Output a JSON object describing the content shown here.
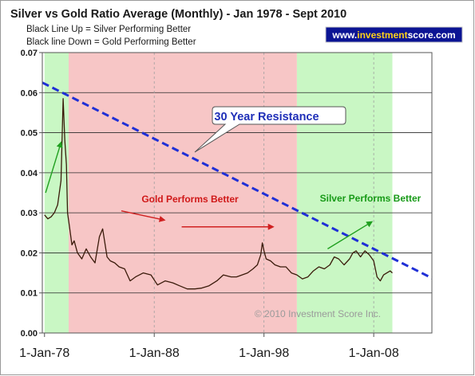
{
  "chart_data": {
    "type": "line",
    "title": "Silver vs Gold Ratio Average (Monthly) - Jan 1978 - Sept 2010",
    "subtitle_lines": [
      "Black Line Up = Silver Performing Better",
      "Black line Down = Gold Performing Better"
    ],
    "website": "www.investmentscore.com",
    "website_prefix": "www.",
    "website_highlight": "investment",
    "website_suffix": "score.com",
    "copyright": "© 2010 Investment Score Inc.",
    "x_ticks": [
      {
        "label": "1-Jan-78",
        "year": 1978.0
      },
      {
        "label": "1-Jan-88",
        "year": 1988.0
      },
      {
        "label": "1-Jan-98",
        "year": 1998.0
      },
      {
        "label": "1-Jan-08",
        "year": 2008.0
      }
    ],
    "xlim": [
      1977.8,
      2013.3
    ],
    "y_ticks": [
      "0.00",
      "0.01",
      "0.02",
      "0.03",
      "0.04",
      "0.05",
      "0.06",
      "0.07"
    ],
    "ylim": [
      0,
      0.07
    ],
    "grid": true,
    "regions": [
      {
        "from": 1978.0,
        "to": 1980.2,
        "color": "#c9f7c4",
        "meaning": "silver"
      },
      {
        "from": 1980.2,
        "to": 2001.0,
        "color": "#f7c6c6",
        "meaning": "gold"
      },
      {
        "from": 2001.0,
        "to": 2009.7,
        "color": "#c9f7c4",
        "meaning": "silver"
      }
    ],
    "resistance_line": {
      "x": [
        1977.8,
        2013.3
      ],
      "y": [
        0.0625,
        0.0137
      ],
      "color": "#1f2fd6"
    },
    "callout_text": "30 Year Resistance",
    "annotations": [
      {
        "text": "Gold Performs Better",
        "color": "#d01818"
      },
      {
        "text": "Silver Performs Better",
        "color": "#179a17"
      }
    ],
    "arrows": [
      {
        "from": [
          1978.1,
          0.035
        ],
        "to": [
          1979.5,
          0.0475
        ],
        "color": "#20a020"
      },
      {
        "from": [
          1985.0,
          0.0305
        ],
        "to": [
          1988.9,
          0.0282
        ],
        "color": "#d02020"
      },
      {
        "from": [
          1990.5,
          0.0265
        ],
        "to": [
          1998.8,
          0.0265
        ],
        "color": "#d02020"
      },
      {
        "from": [
          2003.8,
          0.021
        ],
        "to": [
          2007.8,
          0.0277
        ],
        "color": "#20a020"
      }
    ],
    "series": [
      {
        "color": "#3a1a0a",
        "x": [
          1978.0,
          1978.3,
          1978.6,
          1978.9,
          1979.2,
          1979.5,
          1979.7,
          1979.85,
          1980.0,
          1980.1,
          1980.3,
          1980.5,
          1980.7,
          1981.0,
          1981.4,
          1981.8,
          1982.2,
          1982.6,
          1983.0,
          1983.3,
          1983.7,
          1984.0,
          1984.4,
          1984.8,
          1985.3,
          1985.8,
          1986.3,
          1987.0,
          1987.7,
          1988.3,
          1989.0,
          1989.7,
          1990.3,
          1991.0,
          1991.7,
          1992.3,
          1993.0,
          1993.7,
          1994.3,
          1995.0,
          1995.5,
          1996.0,
          1996.5,
          1997.0,
          1997.4,
          1997.7,
          1997.85,
          1998.0,
          1998.2,
          1998.6,
          1999.0,
          1999.5,
          2000.0,
          2000.5,
          2001.0,
          2001.5,
          2002.0,
          2002.5,
          2003.0,
          2003.5,
          2004.0,
          2004.4,
          2004.8,
          2005.3,
          2005.8,
          2006.1,
          2006.4,
          2006.8,
          2007.2,
          2007.6,
          2008.0,
          2008.3,
          2008.6,
          2008.9,
          2009.2,
          2009.5,
          2009.7
        ],
        "y": [
          0.0295,
          0.0285,
          0.029,
          0.03,
          0.032,
          0.038,
          0.0585,
          0.048,
          0.042,
          0.03,
          0.026,
          0.022,
          0.023,
          0.02,
          0.0185,
          0.021,
          0.019,
          0.0175,
          0.024,
          0.026,
          0.019,
          0.018,
          0.0175,
          0.0165,
          0.016,
          0.013,
          0.014,
          0.015,
          0.0145,
          0.012,
          0.013,
          0.0125,
          0.0118,
          0.011,
          0.011,
          0.0112,
          0.0118,
          0.013,
          0.0145,
          0.014,
          0.014,
          0.0145,
          0.015,
          0.016,
          0.017,
          0.0195,
          0.0225,
          0.0205,
          0.0185,
          0.018,
          0.017,
          0.0165,
          0.0165,
          0.015,
          0.0145,
          0.0135,
          0.014,
          0.0155,
          0.0165,
          0.016,
          0.017,
          0.019,
          0.0185,
          0.017,
          0.0185,
          0.02,
          0.0205,
          0.019,
          0.0205,
          0.0195,
          0.018,
          0.014,
          0.013,
          0.0145,
          0.015,
          0.0155,
          0.015
        ]
      }
    ]
  }
}
